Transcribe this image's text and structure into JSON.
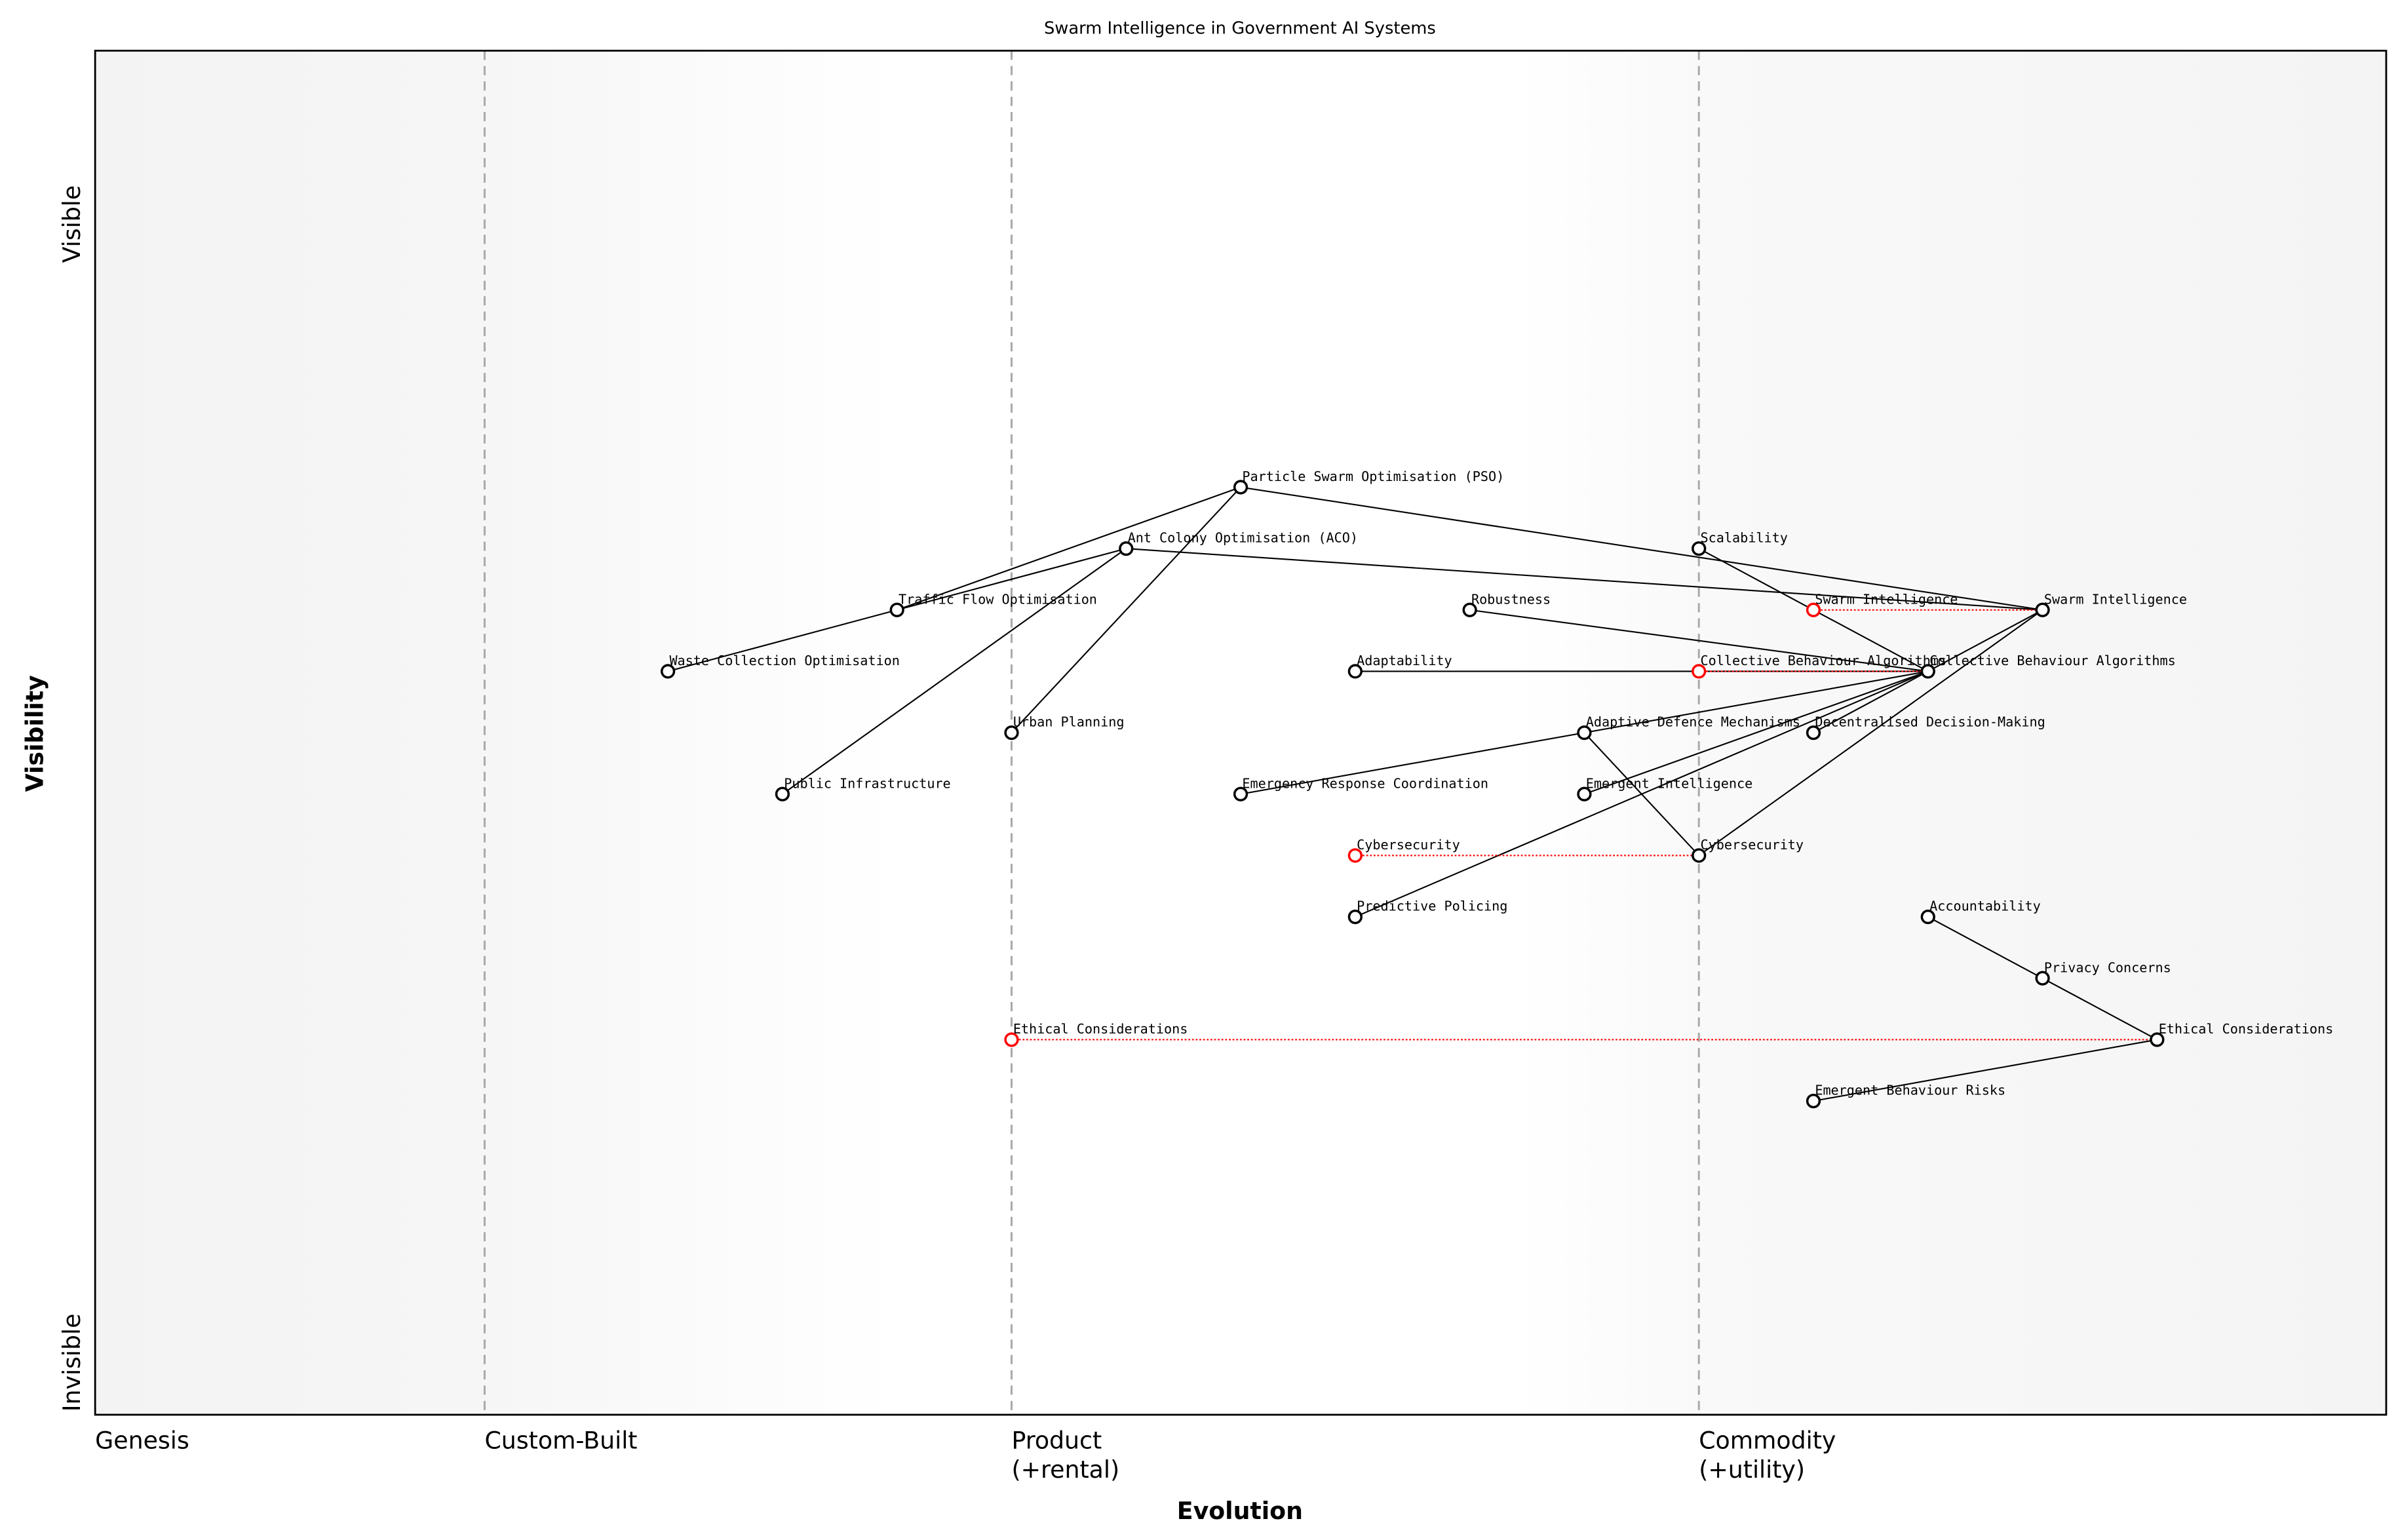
{
  "chart_data": {
    "type": "wardley-map",
    "title": "Swarm Intelligence in Government AI Systems",
    "xlabel": "Evolution",
    "ylabel": "Visibility",
    "y_ticks": {
      "top": "Visible",
      "bottom": "Invisible"
    },
    "stages": [
      {
        "label": "Genesis",
        "start": 0.0
      },
      {
        "label": "Custom-Built",
        "start": 0.17
      },
      {
        "label": "Product\n(+rental)",
        "start": 0.4
      },
      {
        "label": "Commodity\n(+utility)",
        "start": 0.7
      }
    ],
    "xlim": [
      0,
      1
    ],
    "ylim": [
      0,
      1
    ],
    "components": [
      {
        "name": "Particle Swarm Optimisation (PSO)",
        "evolution": 0.5,
        "visibility": 0.68
      },
      {
        "name": "Ant Colony Optimisation (ACO)",
        "evolution": 0.45,
        "visibility": 0.635
      },
      {
        "name": "Scalability",
        "evolution": 0.7,
        "visibility": 0.635
      },
      {
        "name": "Traffic Flow Optimisation",
        "evolution": 0.35,
        "visibility": 0.59
      },
      {
        "name": "Robustness",
        "evolution": 0.6,
        "visibility": 0.59
      },
      {
        "name": "Swarm Intelligence",
        "evolution": 0.85,
        "visibility": 0.59
      },
      {
        "name": "Waste Collection Optimisation",
        "evolution": 0.25,
        "visibility": 0.545
      },
      {
        "name": "Adaptability",
        "evolution": 0.55,
        "visibility": 0.545
      },
      {
        "name": "Collective Behaviour Algorithms",
        "evolution": 0.8,
        "visibility": 0.545
      },
      {
        "name": "Urban Planning",
        "evolution": 0.4,
        "visibility": 0.5
      },
      {
        "name": "Adaptive Defence Mechanisms",
        "evolution": 0.65,
        "visibility": 0.5
      },
      {
        "name": "Decentralised Decision-Making",
        "evolution": 0.75,
        "visibility": 0.5
      },
      {
        "name": "Public Infrastructure",
        "evolution": 0.3,
        "visibility": 0.455
      },
      {
        "name": "Emergency Response Coordination",
        "evolution": 0.5,
        "visibility": 0.455
      },
      {
        "name": "Emergent Intelligence",
        "evolution": 0.65,
        "visibility": 0.455
      },
      {
        "name": "Cybersecurity",
        "evolution": 0.7,
        "visibility": 0.41
      },
      {
        "name": "Predictive Policing",
        "evolution": 0.55,
        "visibility": 0.365
      },
      {
        "name": "Accountability",
        "evolution": 0.8,
        "visibility": 0.365
      },
      {
        "name": "Privacy Concerns",
        "evolution": 0.85,
        "visibility": 0.32
      },
      {
        "name": "Ethical Considerations",
        "evolution": 0.9,
        "visibility": 0.275
      },
      {
        "name": "Emergent Behaviour Risks",
        "evolution": 0.75,
        "visibility": 0.23
      }
    ],
    "evolve": [
      {
        "name": "Swarm Intelligence",
        "to": 0.75
      },
      {
        "name": "Collective Behaviour Algorithms",
        "to": 0.7
      },
      {
        "name": "Cybersecurity",
        "to": 0.55
      },
      {
        "name": "Ethical Considerations",
        "to": 0.4
      }
    ],
    "links": [
      [
        "Traffic Flow Optimisation",
        "Particle Swarm Optimisation (PSO)"
      ],
      [
        "Traffic Flow Optimisation",
        "Ant Colony Optimisation (ACO)"
      ],
      [
        "Waste Collection Optimisation",
        "Traffic Flow Optimisation"
      ],
      [
        "Public Infrastructure",
        "Ant Colony Optimisation (ACO)"
      ],
      [
        "Urban Planning",
        "Particle Swarm Optimisation (PSO)"
      ],
      [
        "Particle Swarm Optimisation (PSO)",
        "Swarm Intelligence"
      ],
      [
        "Ant Colony Optimisation (ACO)",
        "Swarm Intelligence"
      ],
      [
        "Scalability",
        "Collective Behaviour Algorithms"
      ],
      [
        "Robustness",
        "Collective Behaviour Algorithms"
      ],
      [
        "Adaptability",
        "Collective Behaviour Algorithms"
      ],
      [
        "Swarm Intelligence",
        "Collective Behaviour Algorithms"
      ],
      [
        "Adaptive Defence Mechanisms",
        "Collective Behaviour Algorithms"
      ],
      [
        "Decentralised Decision-Making",
        "Collective Behaviour Algorithms"
      ],
      [
        "Emergent Intelligence",
        "Collective Behaviour Algorithms"
      ],
      [
        "Predictive Policing",
        "Collective Behaviour Algorithms"
      ],
      [
        "Emergency Response Coordination",
        "Adaptive Defence Mechanisms"
      ],
      [
        "Adaptive Defence Mechanisms",
        "Cybersecurity"
      ],
      [
        "Cybersecurity",
        "Swarm Intelligence"
      ],
      [
        "Accountability",
        "Privacy Concerns"
      ],
      [
        "Privacy Concerns",
        "Ethical Considerations"
      ],
      [
        "Emergent Behaviour Risks",
        "Ethical Considerations"
      ]
    ],
    "colors": {
      "node": "#000000",
      "evolved_node": "#ff0000",
      "evolve_line": "#ff0000",
      "stage_line": "#aaaaaa",
      "edge_shade": "#f4f4f4"
    }
  }
}
